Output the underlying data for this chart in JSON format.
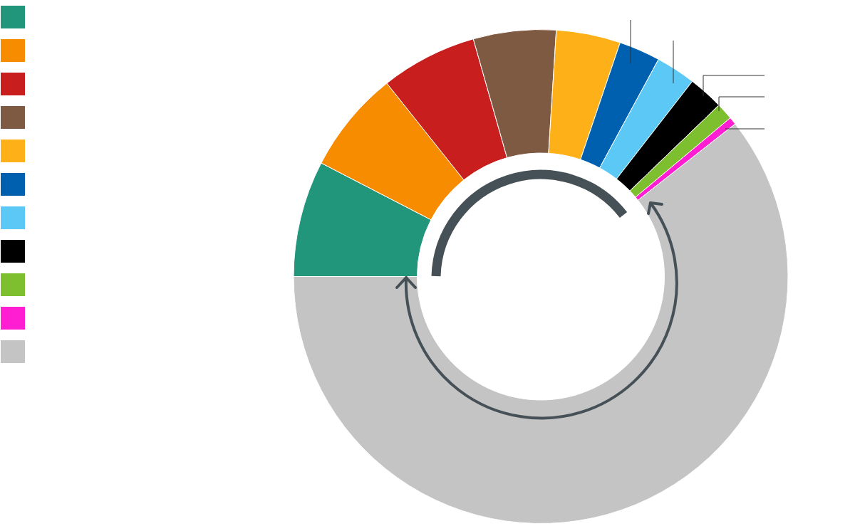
{
  "chart_data": {
    "type": "donut",
    "categories": [
      null,
      null,
      null,
      null,
      null,
      null,
      null,
      null,
      null,
      null,
      null
    ],
    "values": [
      7.6,
      6.7,
      6.3,
      5.4,
      4.2,
      2.7,
      2.6,
      2.3,
      1.1,
      0.5,
      60.6
    ],
    "colors": [
      "#21967b",
      "#f88c00",
      "#c81e1e",
      "#7f5a43",
      "#feb018",
      "#0060b0",
      "#5bc8f5",
      "#000000",
      "#7dbf2e",
      "#ff1ed2",
      "#c4c4c4"
    ],
    "legend": false
  }
}
